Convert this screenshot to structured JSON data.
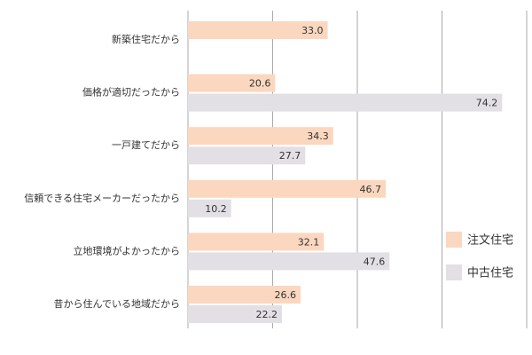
{
  "chart_data": {
    "type": "bar",
    "orientation": "horizontal",
    "categories": [
      "新築住宅だから",
      "価格が適切だったから",
      "一戸建てだから",
      "信頼できる住宅メーカーだったから",
      "立地環境がよかったから",
      "昔から住んでいる地域だから"
    ],
    "series": [
      {
        "name": "注文住宅",
        "color": "#fbd7bf",
        "values": [
          33.0,
          20.6,
          34.3,
          46.7,
          32.1,
          26.6
        ]
      },
      {
        "name": "中古住宅",
        "color": "#e2dfe5",
        "values": [
          null,
          74.2,
          27.7,
          10.2,
          47.6,
          22.2
        ]
      }
    ],
    "xlim": [
      0,
      80
    ],
    "gridlines": [
      0,
      20,
      40,
      60,
      80
    ],
    "grid": true,
    "legend_position": "right",
    "title": "",
    "xlabel": "",
    "ylabel": ""
  }
}
